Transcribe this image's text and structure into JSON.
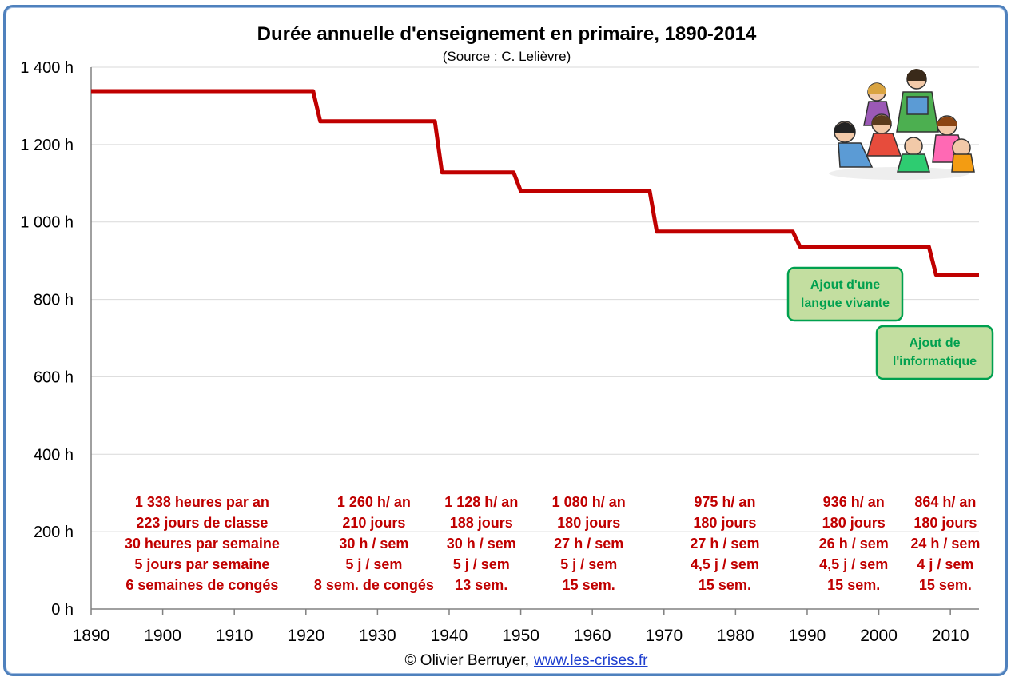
{
  "chart_data": {
    "type": "line",
    "title": "Durée annuelle d'enseignement en primaire, 1890-2014",
    "subtitle": "(Source : C. Lelièvre)",
    "xlabel": "",
    "ylabel": "",
    "xlim": [
      1890,
      2014
    ],
    "ylim": [
      0,
      1400
    ],
    "grid": true,
    "y_ticks": [
      "0 h",
      "200 h",
      "400 h",
      "600 h",
      "800 h",
      "1 000 h",
      "1 200 h",
      "1 400 h"
    ],
    "y_tick_values": [
      0,
      200,
      400,
      600,
      800,
      1000,
      1200,
      1400
    ],
    "x_ticks": [
      "1890",
      "1900",
      "1910",
      "1920",
      "1930",
      "1940",
      "1950",
      "1960",
      "1970",
      "1980",
      "1990",
      "2000",
      "2010"
    ],
    "x_tick_values": [
      1890,
      1900,
      1910,
      1920,
      1930,
      1940,
      1950,
      1960,
      1970,
      1980,
      1990,
      2000,
      2010
    ],
    "series": [
      {
        "color": "#c00000",
        "points": [
          [
            1890,
            1338
          ],
          [
            1921,
            1338
          ],
          [
            1922,
            1260
          ],
          [
            1938,
            1260
          ],
          [
            1939,
            1128
          ],
          [
            1949,
            1128
          ],
          [
            1950,
            1080
          ],
          [
            1968,
            1080
          ],
          [
            1969,
            975
          ],
          [
            1988,
            975
          ],
          [
            1989,
            936
          ],
          [
            2007,
            936
          ],
          [
            2008,
            864
          ],
          [
            2014,
            864
          ]
        ]
      }
    ],
    "period_labels": [
      {
        "cx": 1905.5,
        "lines": [
          "1 338 heures par an",
          "223 jours  de classe",
          "30 heures  par semaine",
          "5 jours  par semaine",
          "6 semaines de congés"
        ]
      },
      {
        "cx": 1929.5,
        "lines": [
          "1 260 h/ an",
          "210 jours",
          "30 h / sem",
          "5 j / sem",
          "8 sem. de congés"
        ]
      },
      {
        "cx": 1944.5,
        "lines": [
          "1 128 h/ an",
          "188 jours",
          "30 h / sem",
          "5 j / sem",
          "13 sem."
        ]
      },
      {
        "cx": 1959.5,
        "lines": [
          "1 080 h/ an",
          "180 jours",
          "27 h / sem",
          "5 j / sem",
          "15 sem."
        ]
      },
      {
        "cx": 1978.5,
        "lines": [
          "975 h/ an",
          "180 jours",
          "27 h / sem",
          "4,5 j / sem",
          "15 sem."
        ]
      },
      {
        "cx": 1996.5,
        "lines": [
          "936 h/ an",
          "180 jours",
          "26 h / sem",
          "4,5 j / sem",
          "15 sem."
        ]
      },
      {
        "cx": 2009.3,
        "lines": [
          "864 h/ an",
          "180 jours",
          "24 h / sem",
          "4 j / sem",
          "15 sem."
        ]
      }
    ],
    "notes": [
      {
        "lines": [
          "Ajout d'une",
          "langue vivante"
        ]
      },
      {
        "lines": [
          "Ajout de",
          "l'informatique"
        ]
      }
    ]
  },
  "footer": {
    "credit": "© Olivier Berruyer,",
    "link": "www.les-crises.fr"
  },
  "colors": {
    "line": "#c00000",
    "annotation": "#c00000",
    "note_fill": "#c3dea0",
    "note_border": "#00a04f",
    "note_text": "#00a04f",
    "frame": "#4f81bd",
    "grid": "#d9d9d9"
  }
}
